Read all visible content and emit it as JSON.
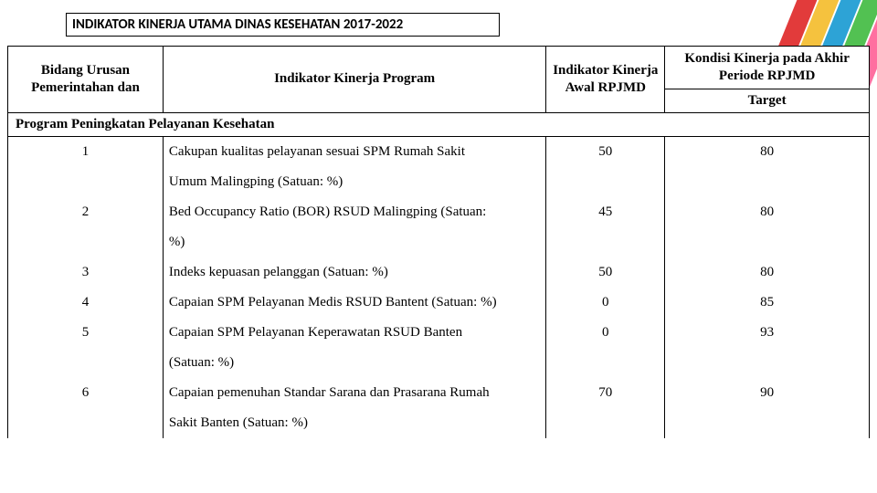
{
  "title": "INDIKATOR KINERJA UTAMA DINAS KESEHATAN 2017-2022",
  "headers": {
    "col1": "Bidang Urusan Pemerintahan dan",
    "col2": "Indikator Kinerja Program",
    "col3": "Indikator Kinerja Awal RPJMD",
    "col4_top": "Kondisi Kinerja pada Akhir Periode RPJMD",
    "col4_sub": "Target"
  },
  "section": "Program Peningkatan Pelayanan Kesehatan",
  "rows": [
    {
      "no": "1",
      "ind": "Cakupan kualitas pelayanan sesuai SPM Rumah Sakit",
      "cont": "Umum Malingping  (Satuan: %)",
      "awal": "50",
      "target": "80"
    },
    {
      "no": "2",
      "ind": "Bed Occupancy Ratio (BOR) RSUD Malingping (Satuan:",
      "cont": "%)",
      "awal": "45",
      "target": "80"
    },
    {
      "no": "3",
      "ind": "Indeks kepuasan pelanggan (Satuan: %)",
      "cont": "",
      "awal": "50",
      "target": "80"
    },
    {
      "no": "4",
      "ind": "Capaian SPM Pelayanan Medis RSUD Bantent (Satuan: %)",
      "cont": "",
      "awal": "0",
      "target": "85"
    },
    {
      "no": "5",
      "ind": "Capaian SPM Pelayanan Keperawatan RSUD Banten",
      "cont": "(Satuan: %)",
      "awal": "0",
      "target": "93"
    },
    {
      "no": "6",
      "ind": "Capaian pemenuhan Standar Sarana dan Prasarana Rumah",
      "cont": "Sakit Banten (Satuan: %)",
      "awal": "70",
      "target": "90"
    }
  ],
  "colors": {
    "border": "#000000",
    "bg": "#ffffff",
    "ribbon": [
      "#ff6fa0",
      "#52c152",
      "#2da3d6",
      "#f5c23e",
      "#e23b3b"
    ]
  },
  "fonts": {
    "title_family": "Calibri",
    "title_size_pt": 12,
    "body_family": "Times New Roman",
    "body_size_pt": 12
  }
}
